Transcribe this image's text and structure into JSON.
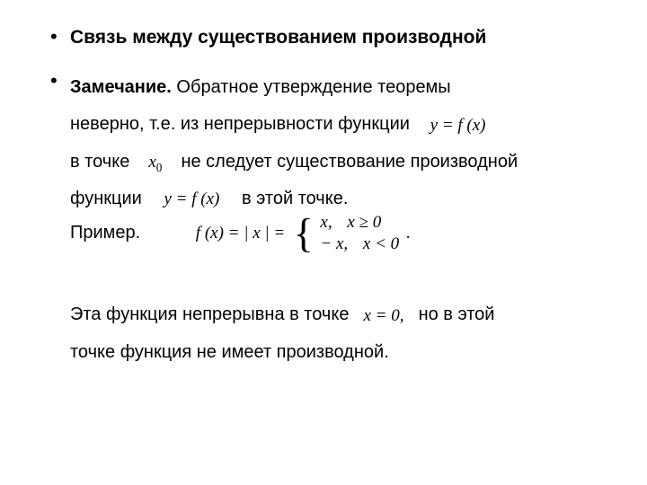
{
  "colors": {
    "background": "#ffffff",
    "text": "#000000"
  },
  "typography": {
    "body_font": "Arial",
    "math_font": "Times New Roman",
    "title_fontsize_pt": 16,
    "body_fontsize_pt": 15,
    "math_fontsize_pt": 14
  },
  "bullet1": {
    "title": "Связь между существованием производной"
  },
  "bullet2": {
    "lead_strong": "Замечание.",
    "line1_rest": "  Обратное утверждение теоремы",
    "line2": "неверно, т.е. из непрерывности функции",
    "eq_yfx_1": "y = f (x)",
    "line3_a": "в точке",
    "eq_x0": "x",
    "eq_x0_sub": "0",
    "line3_b": "не следует существование производной",
    "line4_a": "функции",
    "eq_yfx_2": "y = f (x)",
    "line4_b": "в этой точке.",
    "line5": "Пример.",
    "piecewise": {
      "lhs": "f (x) = | x | =",
      "case1_val": "x,",
      "case1_cond": "x ≥ 0",
      "case2_val": "− x,",
      "case2_cond": "x < 0",
      "trailing_dot": "."
    },
    "line6_a": "Эта функция непрерывна в точке",
    "eq_xeq0": "x = 0,",
    "line6_b": "но в этой",
    "line7": "точке функция не имеет производной."
  }
}
